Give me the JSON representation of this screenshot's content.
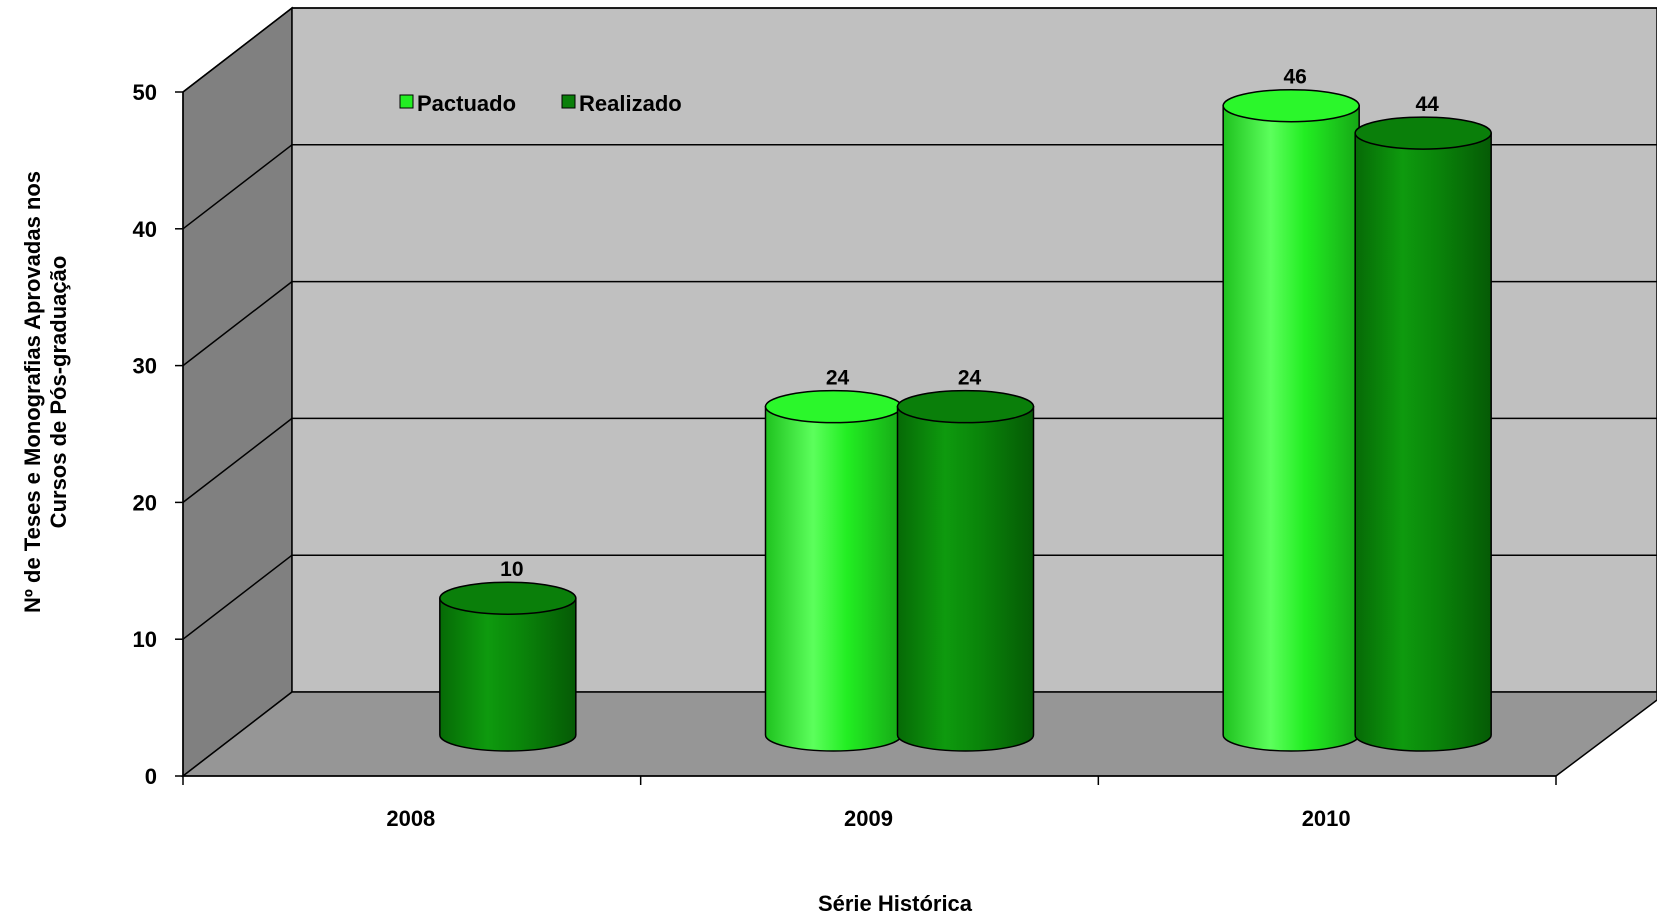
{
  "chart_data": {
    "type": "bar",
    "style": "3d-cylinder",
    "categories": [
      "2008",
      "2009",
      "2010"
    ],
    "series": [
      {
        "name": "Pactuado",
        "values": [
          null,
          24,
          46
        ],
        "color": "#22ee22"
      },
      {
        "name": "Realizado",
        "values": [
          10,
          24,
          44
        ],
        "color": "#0a7f0a"
      }
    ],
    "data_labels": {
      "Pactuado": [
        "",
        "24",
        "46"
      ],
      "Realizado": [
        "10",
        "24",
        "44"
      ]
    },
    "ylim": [
      0,
      50
    ],
    "yticks": [
      0,
      10,
      20,
      30,
      40,
      50
    ],
    "ylabel_line1": "Nº de Teses  e Monografias  Aprovadas  nos",
    "ylabel_line2": "Cursos de Pós-graduação",
    "xlabel": "Série Histórica",
    "legend": "top-left inside plot",
    "grid": true,
    "colors": {
      "back_wall": "#c0c0c0",
      "side_wall": "#808080",
      "floor": "#969696"
    }
  }
}
